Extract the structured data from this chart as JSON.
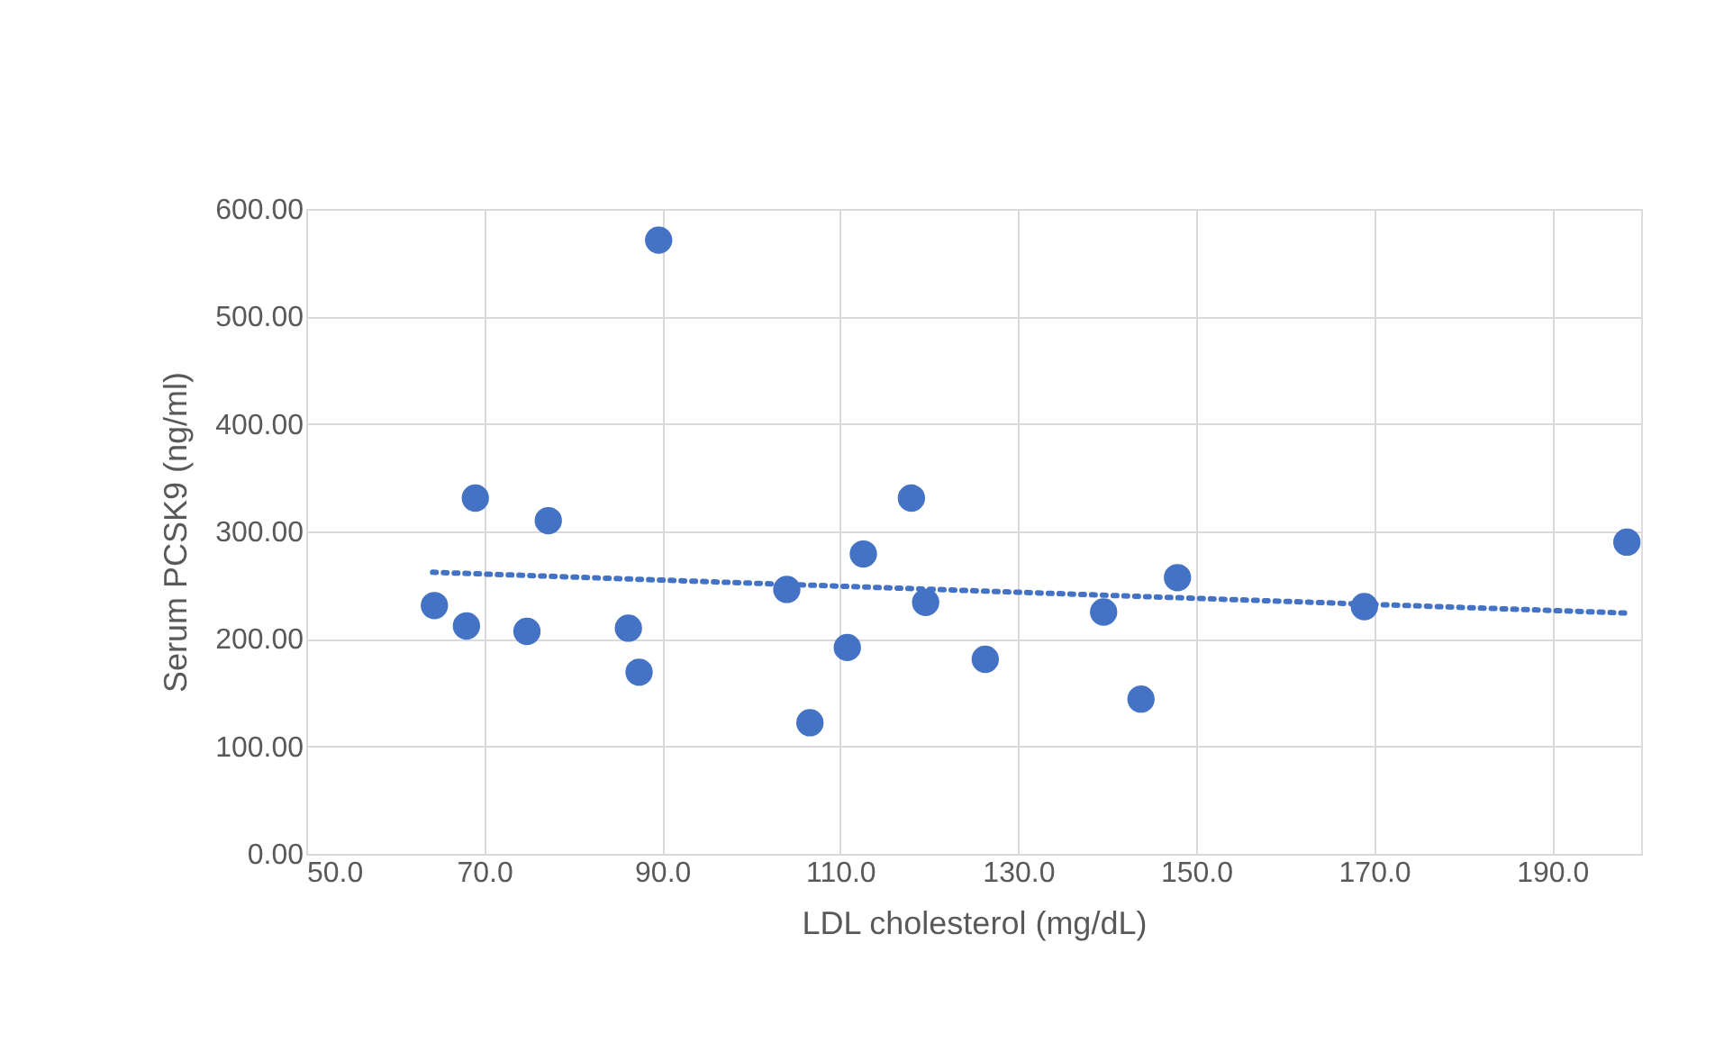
{
  "chart_data": {
    "type": "scatter",
    "xlabel": "LDL cholesterol (mg/dL)",
    "ylabel": "Serum PCSK9 (ng/ml)",
    "xlim": [
      50,
      200
    ],
    "xticks": [
      {
        "value": 50,
        "label": "50.0"
      },
      {
        "value": 70,
        "label": "70.0"
      },
      {
        "value": 90,
        "label": "90.0"
      },
      {
        "value": 110,
        "label": "110.0"
      },
      {
        "value": 130,
        "label": "130.0"
      },
      {
        "value": 150,
        "label": "150.0"
      },
      {
        "value": 170,
        "label": "170.0"
      },
      {
        "value": 190,
        "label": "190.0"
      }
    ],
    "ylim": [
      0,
      600
    ],
    "yticks": [
      {
        "value": 0,
        "label": "0.00"
      },
      {
        "value": 100,
        "label": "100.00"
      },
      {
        "value": 200,
        "label": "200.00"
      },
      {
        "value": 300,
        "label": "300.00"
      },
      {
        "value": 400,
        "label": "400.00"
      },
      {
        "value": 500,
        "label": "500.00"
      },
      {
        "value": 600,
        "label": "600.00"
      }
    ],
    "grid": true,
    "series": [
      {
        "marker": "circle",
        "color": "#4472c4",
        "x": [
          64.4,
          68.0,
          69.0,
          74.8,
          77.2,
          86.2,
          87.4,
          89.6,
          104.0,
          106.6,
          110.8,
          112.6,
          118.0,
          119.6,
          126.3,
          139.6,
          143.8,
          147.9,
          168.9,
          198.4
        ],
        "values": [
          231,
          212,
          331,
          207,
          310,
          210,
          169,
          571,
          246,
          122,
          192,
          279,
          331,
          234,
          181,
          225,
          144,
          257,
          230,
          290
        ]
      },
      {
        "type": "line",
        "line_style": "dotted",
        "color": "#4472c4",
        "x": [
          64.2,
          198.6
        ],
        "values": [
          262,
          224
        ]
      }
    ]
  }
}
